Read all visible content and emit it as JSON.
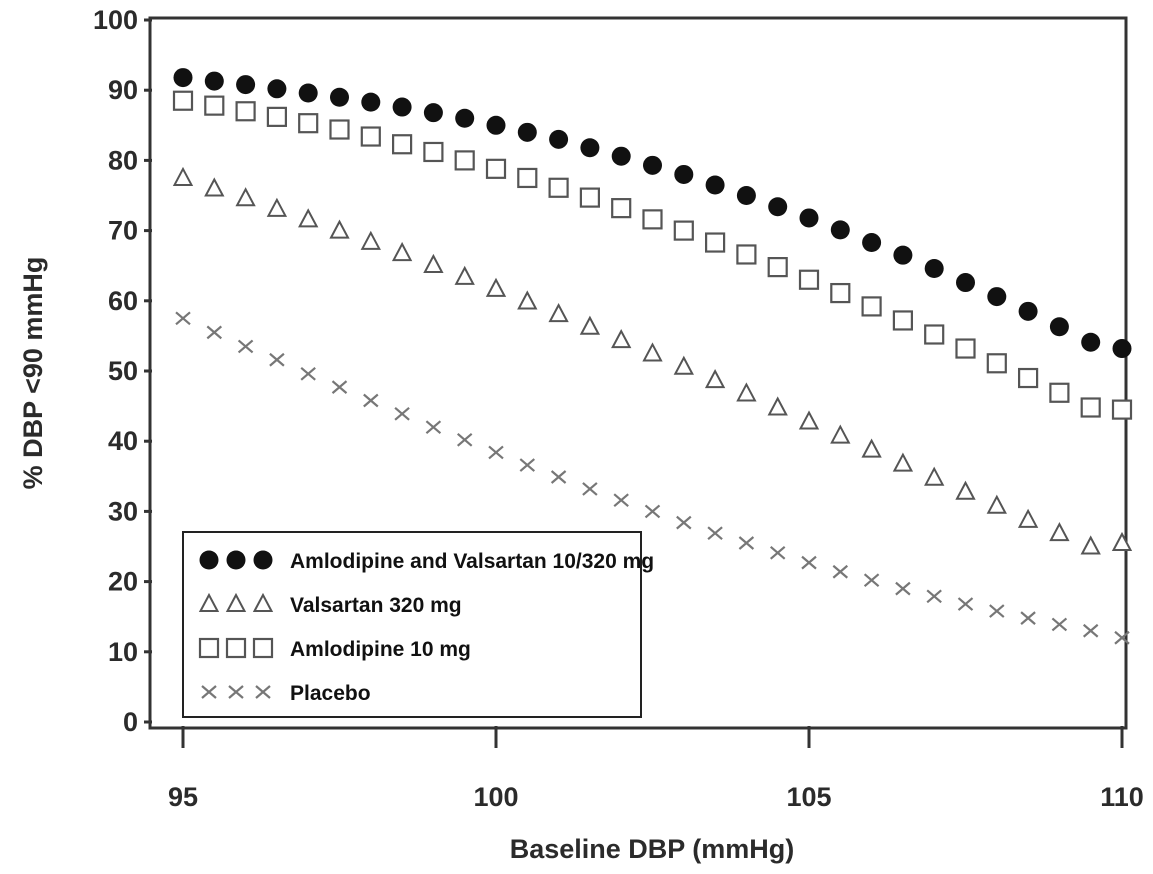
{
  "chart_data": {
    "type": "scatter",
    "title": "",
    "xlabel": "Baseline DBP (mmHg)",
    "ylabel": "% DBP <90 mmHg",
    "xlim": [
      95,
      110
    ],
    "ylim": [
      0,
      100
    ],
    "xticks": [
      95,
      100,
      105,
      110
    ],
    "yticks": [
      0,
      10,
      20,
      30,
      40,
      50,
      60,
      70,
      80,
      90,
      100
    ],
    "grid": false,
    "legend_position": "bottom-left",
    "x": [
      95,
      95.5,
      96,
      96.5,
      97,
      97.5,
      98,
      98.5,
      99,
      99.5,
      100,
      100.5,
      101,
      101.5,
      102,
      102.5,
      103,
      103.5,
      104,
      104.5,
      105,
      105.5,
      106,
      106.5,
      107,
      107.5,
      108,
      108.5,
      109,
      109.5,
      110
    ],
    "series": [
      {
        "name": "Amlodipine and Valsartan 10/320 mg",
        "marker": "filled-circle",
        "color": "#111111",
        "values": [
          91.8,
          91.3,
          90.8,
          90.2,
          89.6,
          89.0,
          88.3,
          87.6,
          86.8,
          86.0,
          85.0,
          84.0,
          83.0,
          81.8,
          80.6,
          79.3,
          78.0,
          76.5,
          75.0,
          73.4,
          71.8,
          70.1,
          68.3,
          66.5,
          64.6,
          62.6,
          60.6,
          58.5,
          56.3,
          54.1,
          53.2
        ]
      },
      {
        "name": "Valsartan 320 mg",
        "marker": "open-triangle",
        "color": "#555555",
        "values": [
          77.5,
          76.0,
          74.6,
          73.1,
          71.6,
          70.0,
          68.4,
          66.8,
          65.1,
          63.4,
          61.7,
          59.9,
          58.1,
          56.3,
          54.4,
          52.5,
          50.6,
          48.7,
          46.8,
          44.8,
          42.8,
          40.8,
          38.8,
          36.8,
          34.8,
          32.8,
          30.8,
          28.8,
          26.9,
          25.0,
          25.5
        ]
      },
      {
        "name": "Amlodipine 10 mg",
        "marker": "open-square",
        "color": "#555555",
        "values": [
          88.5,
          87.8,
          87.0,
          86.2,
          85.3,
          84.4,
          83.4,
          82.3,
          81.2,
          80.0,
          78.8,
          77.5,
          76.1,
          74.7,
          73.2,
          71.6,
          70.0,
          68.3,
          66.6,
          64.8,
          63.0,
          61.1,
          59.2,
          57.2,
          55.2,
          53.2,
          51.1,
          49.0,
          46.9,
          44.8,
          44.5
        ]
      },
      {
        "name": "Placebo",
        "marker": "x",
        "color": "#777777",
        "values": [
          57.5,
          55.5,
          53.5,
          51.6,
          49.6,
          47.7,
          45.8,
          43.9,
          42.0,
          40.2,
          38.4,
          36.6,
          34.9,
          33.2,
          31.6,
          30.0,
          28.4,
          26.9,
          25.5,
          24.1,
          22.7,
          21.4,
          20.2,
          19.0,
          17.9,
          16.8,
          15.8,
          14.8,
          13.9,
          13.0,
          12.0
        ]
      }
    ]
  }
}
